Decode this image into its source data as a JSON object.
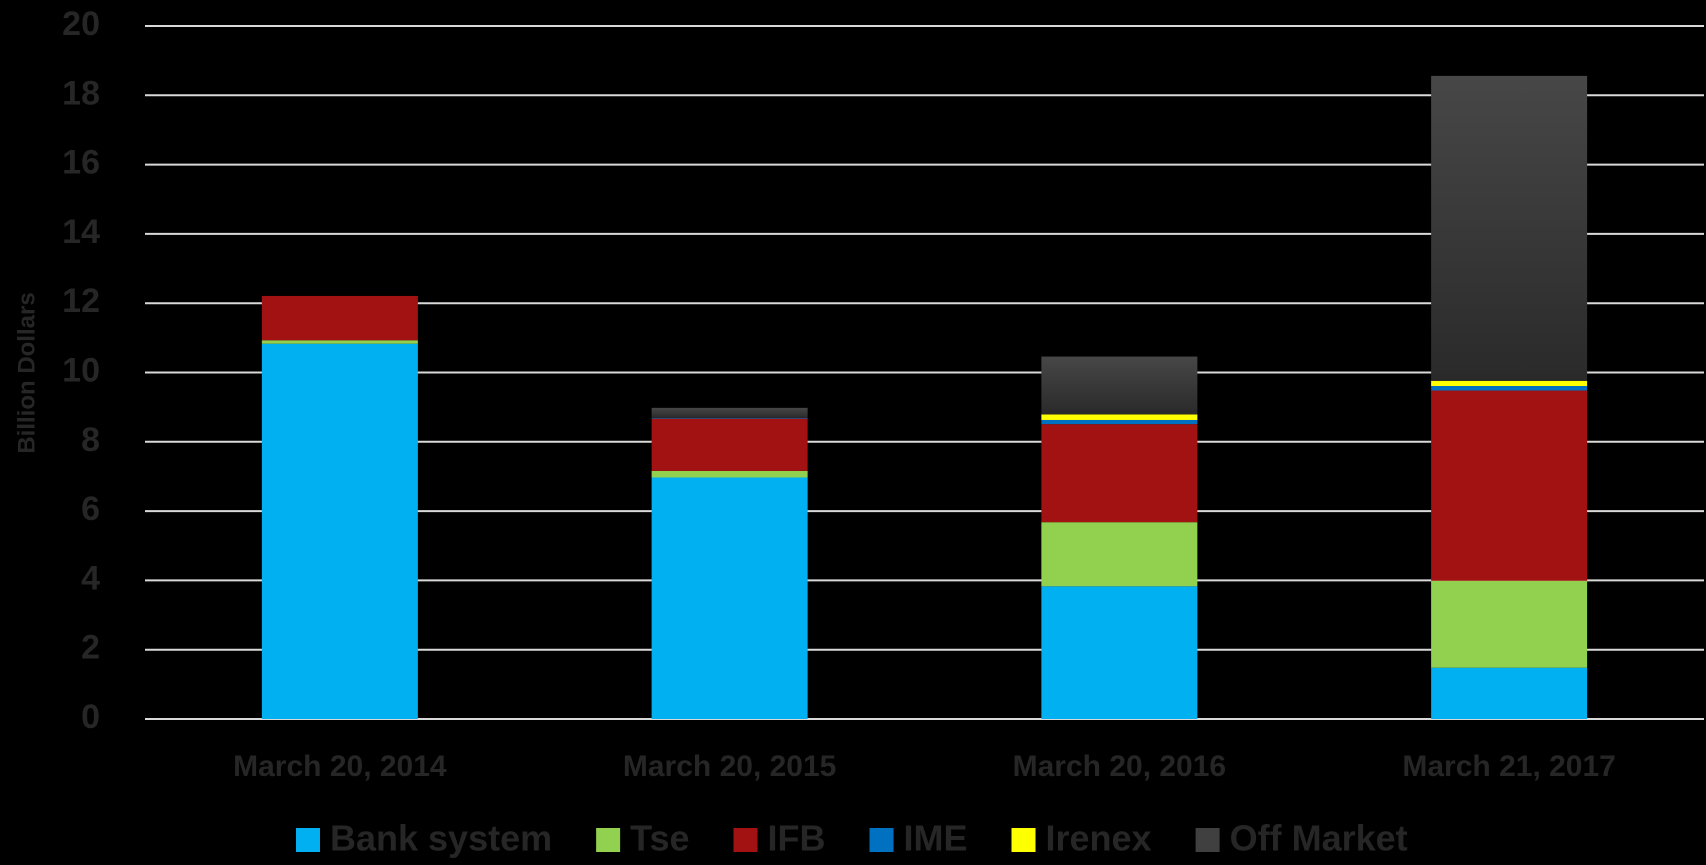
{
  "chart_data": {
    "type": "stacked_bar",
    "y_label": "Billion Dollars",
    "categories": [
      "March 20, 2014",
      "March 20, 2015",
      "March 20, 2016",
      "March 21, 2017"
    ],
    "series": [
      {
        "name": "Bank system",
        "color": "#00b0f0",
        "values": [
          10.83,
          6.97,
          3.83,
          1.48
        ]
      },
      {
        "name": "Tse",
        "color": "#92d050",
        "values": [
          0.1,
          0.19,
          1.85,
          2.51
        ]
      },
      {
        "name": "IFB",
        "color": "#a31212",
        "values": [
          1.28,
          1.51,
          2.83,
          5.49
        ]
      },
      {
        "name": "IME",
        "color": "#0070c0",
        "values": [
          0,
          0.02,
          0.12,
          0.13
        ]
      },
      {
        "name": "Irenex",
        "color": "#ffff00",
        "values": [
          0,
          0,
          0.16,
          0.15
        ]
      },
      {
        "name": "Off Market",
        "color": "#404040",
        "values": [
          0,
          0.29,
          1.67,
          8.8
        ]
      }
    ],
    "ylim": [
      0,
      20
    ],
    "yticks": [
      0,
      2,
      4,
      6,
      8,
      10,
      12,
      14,
      16,
      18,
      20
    ],
    "grid": true
  }
}
